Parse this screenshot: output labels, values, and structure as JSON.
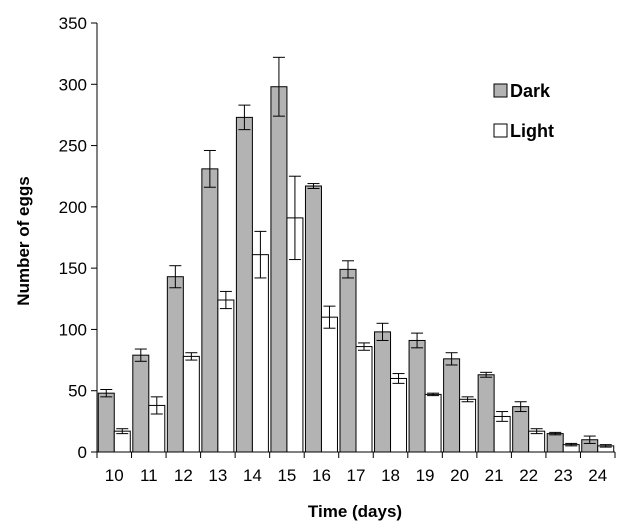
{
  "chart_data": {
    "type": "bar",
    "title": "",
    "xlabel": "Time (days)",
    "ylabel": "Number of eggs",
    "ylim": [
      0,
      350
    ],
    "yticks": [
      "0",
      "50",
      "100",
      "150",
      "200",
      "250",
      "300",
      "350"
    ],
    "grid": false,
    "legend_position": "top-right",
    "categories": [
      "10",
      "11",
      "12",
      "13",
      "14",
      "15",
      "16",
      "17",
      "18",
      "19",
      "20",
      "21",
      "22",
      "23",
      "24"
    ],
    "series": [
      {
        "name": "Dark",
        "color": "#b3b3b3",
        "values": [
          48,
          79,
          143,
          231,
          273,
          298,
          217,
          149,
          98,
          91,
          76,
          63,
          37,
          15,
          10
        ],
        "errors": [
          3,
          5,
          9,
          15,
          10,
          24,
          2,
          7,
          7,
          6,
          5,
          2,
          4,
          1,
          3
        ]
      },
      {
        "name": "Light",
        "color": "#ffffff",
        "values": [
          17,
          38,
          78,
          124,
          161,
          191,
          110,
          86,
          60,
          47,
          43,
          29,
          17,
          6,
          5
        ],
        "errors": [
          2,
          7,
          3,
          7,
          19,
          34,
          9,
          3,
          4,
          1,
          2,
          4,
          2,
          1,
          1
        ]
      }
    ]
  }
}
